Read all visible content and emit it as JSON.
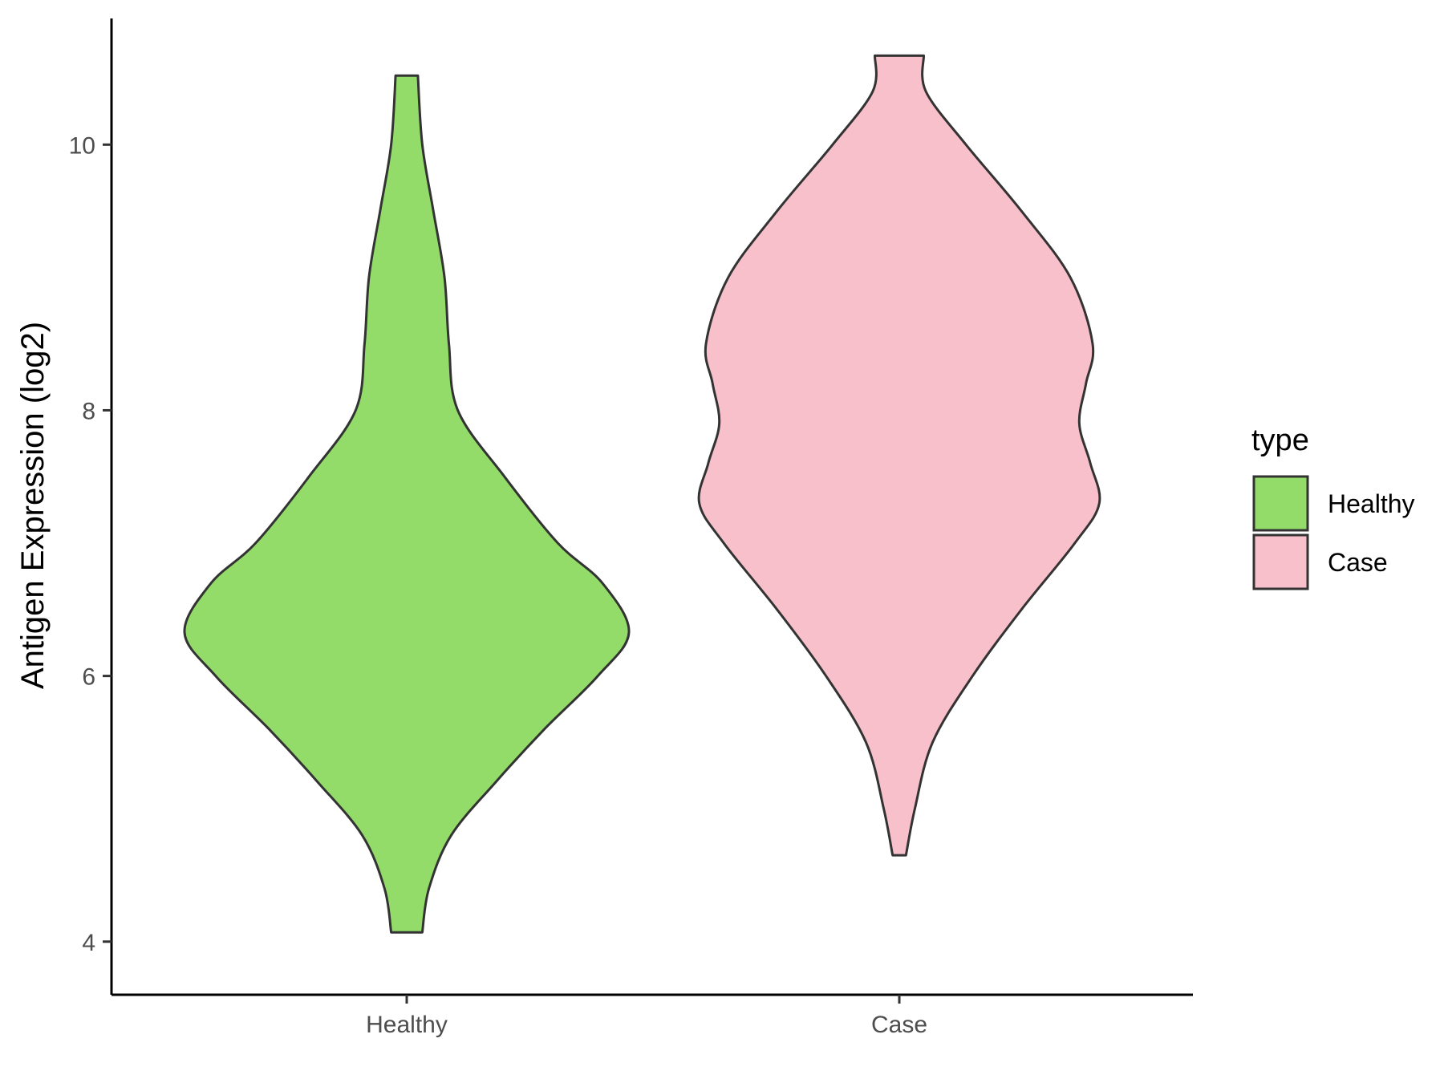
{
  "chart_data": {
    "type": "violin",
    "title": "",
    "xlabel": "",
    "ylabel": "Antigen Expression (log2)",
    "categories": [
      "Healthy",
      "Case"
    ],
    "ylim": [
      3.6,
      10.95
    ],
    "yticks": [
      4,
      6,
      8,
      10
    ],
    "grid": false,
    "legend": {
      "title": "type",
      "position": "right",
      "entries": [
        {
          "label": "Healthy",
          "color": "#93DC6A"
        },
        {
          "label": "Case",
          "color": "#F8C0CB"
        }
      ]
    },
    "series": [
      {
        "name": "Healthy",
        "color": "#93DC6A",
        "min": 4.07,
        "max": 10.52,
        "density_profile": [
          [
            4.07,
            0.07
          ],
          [
            4.4,
            0.1
          ],
          [
            4.8,
            0.2
          ],
          [
            5.2,
            0.4
          ],
          [
            5.6,
            0.62
          ],
          [
            6.0,
            0.86
          ],
          [
            6.33,
            1.0
          ],
          [
            6.7,
            0.88
          ],
          [
            7.0,
            0.68
          ],
          [
            7.5,
            0.44
          ],
          [
            8.0,
            0.23
          ],
          [
            8.5,
            0.19
          ],
          [
            9.0,
            0.17
          ],
          [
            9.5,
            0.12
          ],
          [
            10.0,
            0.07
          ],
          [
            10.52,
            0.05
          ]
        ]
      },
      {
        "name": "Case",
        "color": "#F8C0CB",
        "min": 4.65,
        "max": 10.67,
        "density_profile": [
          [
            4.65,
            0.03
          ],
          [
            5.0,
            0.07
          ],
          [
            5.5,
            0.15
          ],
          [
            6.0,
            0.33
          ],
          [
            6.5,
            0.55
          ],
          [
            7.0,
            0.79
          ],
          [
            7.3,
            0.9
          ],
          [
            7.6,
            0.86
          ],
          [
            7.9,
            0.81
          ],
          [
            8.2,
            0.84
          ],
          [
            8.5,
            0.87
          ],
          [
            9.0,
            0.77
          ],
          [
            9.5,
            0.55
          ],
          [
            10.0,
            0.3
          ],
          [
            10.4,
            0.12
          ],
          [
            10.67,
            0.11
          ]
        ]
      }
    ]
  }
}
